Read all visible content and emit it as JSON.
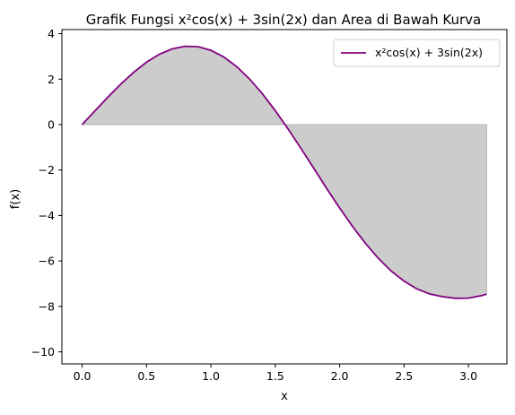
{
  "chart_data": {
    "type": "line",
    "title": "Grafik Fungsi x²cos(x) + 3sin(2x) dan Area di Bawah Kurva",
    "xlabel": "x",
    "ylabel": "f(x)",
    "xlim": [
      -0.157,
      3.299
    ],
    "ylim": [
      -10.53,
      4.18
    ],
    "x_ticks": [
      0.0,
      0.5,
      1.0,
      1.5,
      2.0,
      2.5,
      3.0
    ],
    "x_tick_labels": [
      "0.0",
      "0.5",
      "1.0",
      "1.5",
      "2.0",
      "2.5",
      "3.0"
    ],
    "y_ticks": [
      4,
      2,
      0,
      -2,
      -4,
      -6,
      -8,
      -10
    ],
    "y_tick_labels": [
      "4",
      "2",
      "0",
      "−2",
      "−4",
      "−6",
      "−8",
      "−10"
    ],
    "legend_position": "top-right",
    "grid": false,
    "series": [
      {
        "name": "x²cos(x) + 3sin(2x)",
        "color": "#800080",
        "fill_to_zero": true,
        "fill_color": "#cccccc",
        "x": [
          0.0,
          0.1,
          0.2,
          0.3,
          0.4,
          0.5,
          0.6,
          0.7,
          0.8,
          0.9,
          1.0,
          1.1,
          1.2,
          1.3,
          1.4,
          1.5,
          1.6,
          1.7,
          1.8,
          1.9,
          2.0,
          2.1,
          2.2,
          2.3,
          2.4,
          2.5,
          2.6,
          2.7,
          2.8,
          2.9,
          3.0,
          3.1,
          3.1416
        ],
        "y": [
          0.0,
          0.606,
          1.207,
          1.779,
          2.299,
          2.744,
          3.094,
          3.331,
          3.445,
          3.425,
          3.268,
          2.975,
          2.552,
          2.008,
          1.357,
          0.615,
          -0.196,
          -1.053,
          -1.934,
          -2.82,
          -3.671,
          -4.481,
          -5.223,
          -5.883,
          -6.443,
          -6.887,
          -7.231,
          -7.455,
          -7.571,
          -7.644,
          -7.636,
          -7.527,
          -7.461
        ]
      }
    ]
  }
}
